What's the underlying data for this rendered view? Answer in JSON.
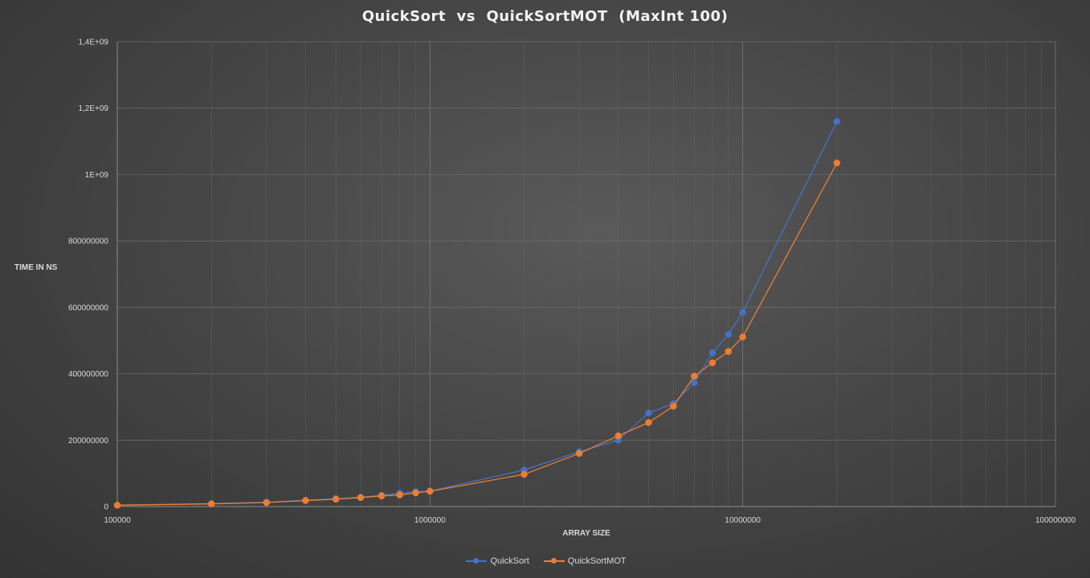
{
  "chart_data": {
    "type": "line",
    "title": "QuickSort  vs  QuickSortMOT  (MaxInt 100)",
    "xlabel": "ARRAY SIZE",
    "ylabel": "TIME IN NS",
    "x_scale": "log",
    "xlim": [
      100000,
      100000000
    ],
    "ylim": [
      0,
      1400000000
    ],
    "x_ticks": [
      "100000",
      "1000000",
      "10000000",
      "100000000"
    ],
    "y_ticks": [
      "0",
      "200000000",
      "400000000",
      "600000000",
      "800000000",
      "1E+09",
      "1,2E+09",
      "1,4E+09"
    ],
    "grid": true,
    "legend_position": "bottom",
    "x": [
      100000,
      200000,
      300000,
      400000,
      500000,
      600000,
      700000,
      800000,
      900000,
      1000000,
      2000000,
      3000000,
      4000000,
      5000000,
      6000000,
      7000000,
      8000000,
      9000000,
      10000000,
      20000000
    ],
    "series": [
      {
        "name": "QuickSort",
        "color": "#4472c4",
        "values": [
          4000000,
          9000000,
          13000000,
          19000000,
          24000000,
          28000000,
          34000000,
          40000000,
          45000000,
          47000000,
          110000000,
          165000000,
          200000000,
          282000000,
          310000000,
          373000000,
          463000000,
          519000000,
          585000000,
          1160000000
        ]
      },
      {
        "name": "QuickSortMOT",
        "color": "#ed7d31",
        "values": [
          4000000,
          8000000,
          12000000,
          18000000,
          22000000,
          27000000,
          32000000,
          35000000,
          41000000,
          46000000,
          97000000,
          160000000,
          213000000,
          253000000,
          302000000,
          393000000,
          433000000,
          467000000,
          511000000,
          1035000000
        ]
      }
    ]
  }
}
